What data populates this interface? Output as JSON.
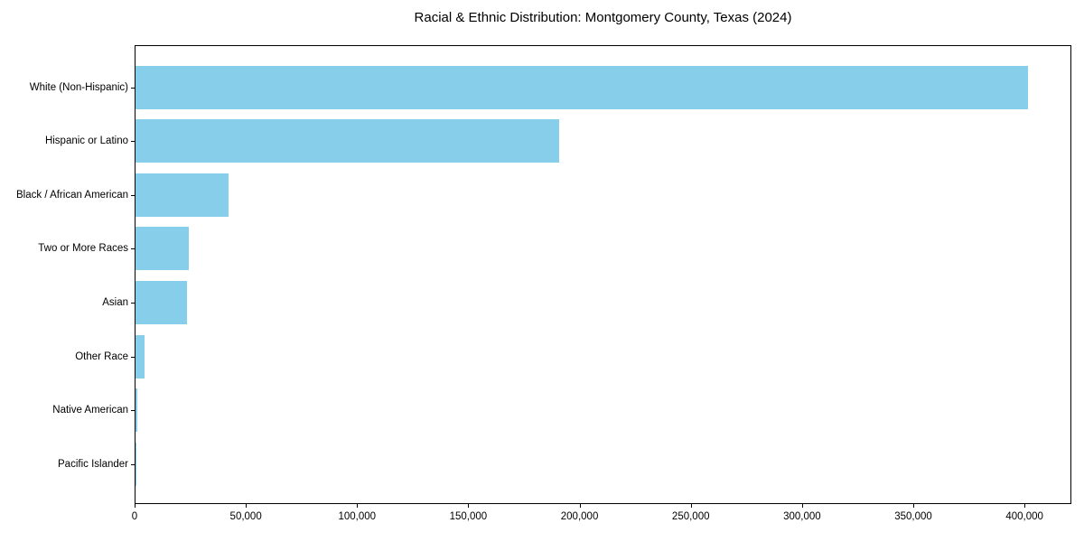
{
  "chart_data": {
    "type": "bar",
    "orientation": "horizontal",
    "title": "Racial & Ethnic Distribution: Montgomery County, Texas (2024)",
    "categories": [
      "White (Non-Hispanic)",
      "Hispanic or Latino",
      "Black / African American",
      "Two or More Races",
      "Asian",
      "Other Race",
      "Native American",
      "Pacific Islander"
    ],
    "values": [
      401000,
      190500,
      42000,
      24000,
      23000,
      3900,
      800,
      300
    ],
    "xlabel": "",
    "ylabel": "",
    "xlim": [
      0,
      421050
    ],
    "x_ticks": [
      0,
      50000,
      100000,
      150000,
      200000,
      250000,
      300000,
      350000,
      400000
    ],
    "x_tick_labels": [
      "0",
      "50,000",
      "100,000",
      "150,000",
      "200,000",
      "250,000",
      "300,000",
      "350,000",
      "400,000"
    ],
    "bar_color": "#87CEEB",
    "axis_color": "#000000",
    "background_color": "#ffffff",
    "grid": false,
    "legend": null
  }
}
